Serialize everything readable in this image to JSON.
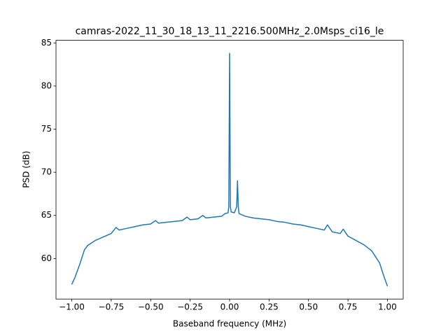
{
  "chart_data": {
    "type": "line",
    "title": "camras-2022_11_30_18_13_11_2216.500MHz_2.0Msps_ci16_le",
    "x_label": "Baseband frequency (MHz)",
    "y_label": "PSD (dB)",
    "x": [
      -1.0,
      -0.98,
      -0.95,
      -0.92,
      -0.9,
      -0.85,
      -0.8,
      -0.75,
      -0.72,
      -0.7,
      -0.65,
      -0.6,
      -0.55,
      -0.5,
      -0.47,
      -0.45,
      -0.4,
      -0.35,
      -0.3,
      -0.27,
      -0.25,
      -0.2,
      -0.17,
      -0.15,
      -0.1,
      -0.05,
      -0.03,
      -0.01,
      -0.005,
      0.0,
      0.005,
      0.01,
      0.03,
      0.045,
      0.05,
      0.055,
      0.06,
      0.1,
      0.15,
      0.2,
      0.25,
      0.3,
      0.35,
      0.4,
      0.45,
      0.5,
      0.55,
      0.6,
      0.62,
      0.65,
      0.7,
      0.72,
      0.75,
      0.8,
      0.85,
      0.9,
      0.95,
      0.98,
      1.0
    ],
    "series": [
      {
        "name": "PSD",
        "color": "#1f77b4",
        "values": [
          57.0,
          57.8,
          59.3,
          61.0,
          61.5,
          62.1,
          62.5,
          62.9,
          63.6,
          63.3,
          63.5,
          63.7,
          63.9,
          64.0,
          64.4,
          64.1,
          64.2,
          64.3,
          64.4,
          64.8,
          64.5,
          64.6,
          65.0,
          64.7,
          64.8,
          64.9,
          65.2,
          65.3,
          66.0,
          83.8,
          66.0,
          65.4,
          65.3,
          66.0,
          69.0,
          66.0,
          65.2,
          64.9,
          64.7,
          64.6,
          64.5,
          64.3,
          64.2,
          64.0,
          63.9,
          63.7,
          63.5,
          63.3,
          63.9,
          63.1,
          62.9,
          63.4,
          62.6,
          62.1,
          61.6,
          60.9,
          59.5,
          57.8,
          56.8
        ]
      }
    ],
    "xlim": [
      -1.1,
      1.1
    ],
    "ylim": [
      55.3,
      85.3
    ],
    "xticks": [
      {
        "value": -1.0,
        "label": "−1.00"
      },
      {
        "value": -0.75,
        "label": "−0.75"
      },
      {
        "value": -0.5,
        "label": "−0.50"
      },
      {
        "value": -0.25,
        "label": "−0.25"
      },
      {
        "value": 0.0,
        "label": "0.00"
      },
      {
        "value": 0.25,
        "label": "0.25"
      },
      {
        "value": 0.5,
        "label": "0.50"
      },
      {
        "value": 0.75,
        "label": "0.75"
      },
      {
        "value": 1.0,
        "label": "1.00"
      }
    ],
    "yticks": [
      60,
      65,
      70,
      75,
      80,
      85
    ]
  }
}
